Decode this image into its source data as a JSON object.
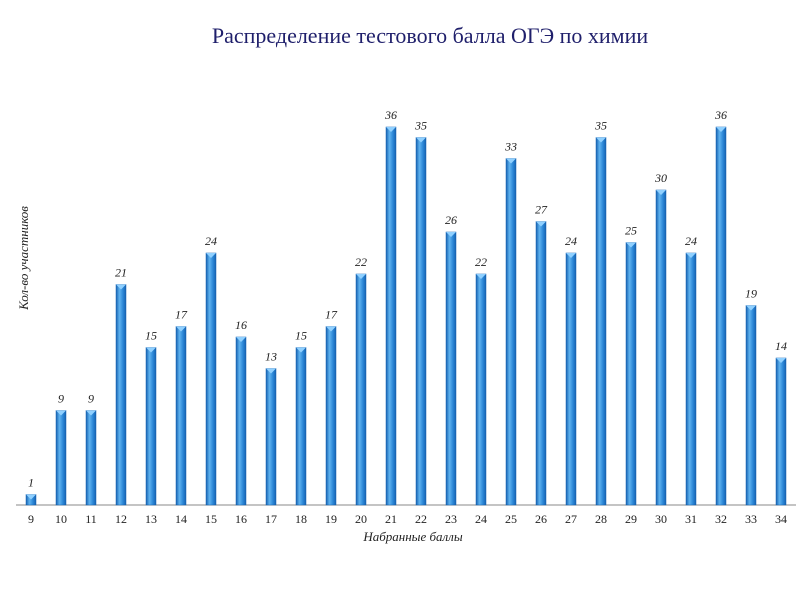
{
  "chart_data": {
    "type": "bar",
    "title": "Распределение тестового балла ОГЭ по химии",
    "xlabel": "Набранные баллы",
    "ylabel": "Кол-во участников",
    "categories": [
      "9",
      "10",
      "11",
      "12",
      "13",
      "14",
      "15",
      "16",
      "17",
      "18",
      "19",
      "20",
      "21",
      "22",
      "23",
      "24",
      "25",
      "26",
      "27",
      "28",
      "29",
      "30",
      "31",
      "32",
      "33",
      "34"
    ],
    "values": [
      1,
      9,
      9,
      21,
      15,
      17,
      24,
      16,
      13,
      15,
      17,
      22,
      36,
      35,
      26,
      22,
      33,
      27,
      24,
      35,
      25,
      30,
      24,
      36,
      19,
      14
    ],
    "ylim": [
      0,
      36
    ],
    "grid": false,
    "legend": "none",
    "data_labels": true
  },
  "colors": {
    "bar_light": "#5fb3f0",
    "bar_mid": "#2b86d6",
    "bar_dark": "#1561b0",
    "bar_top": "#8fd0ff",
    "axis": "#888888",
    "title": "#1f1f6b"
  }
}
